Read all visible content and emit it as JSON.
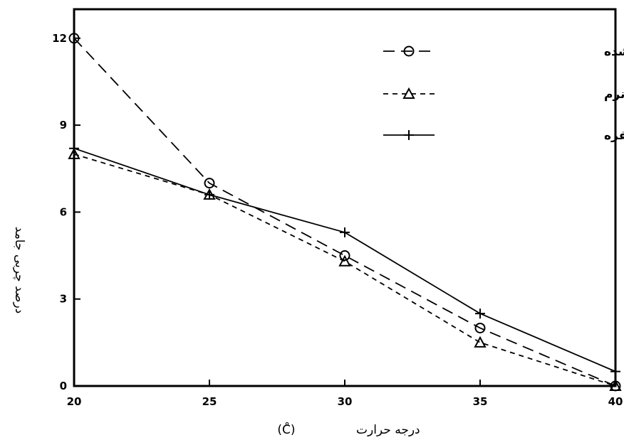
{
  "chart_data": {
    "type": "line",
    "title": "",
    "xlabel": "درجه حرارت",
    "xunit": "(C̊)",
    "ylabel": "درصد چربی جامد",
    "xlim": [
      20,
      40
    ],
    "ylim": [
      0,
      13
    ],
    "x_ticks": [
      "20",
      "25",
      "30",
      "35",
      "40"
    ],
    "y_ticks": [
      "0",
      "3",
      "6",
      "9",
      "12"
    ],
    "grid": false,
    "legend_position": "top-right",
    "series": [
      {
        "name": "نمونه تغییراستری شده",
        "marker": "circle",
        "line_style": "long-dash",
        "x": [
          20,
          25,
          30,
          35,
          40
        ],
        "y": [
          12.0,
          7.0,
          4.5,
          2.0,
          0.0
        ]
      },
      {
        "name": "مارگارین نرم",
        "marker": "triangle",
        "line_style": "short-dash",
        "x": [
          20,
          25,
          30,
          35,
          40
        ],
        "y": [
          8.0,
          6.6,
          4.3,
          1.5,
          0.0
        ]
      },
      {
        "name": "مارگارین سفره",
        "marker": "plus",
        "line_style": "solid",
        "x": [
          20,
          25,
          30,
          35,
          40
        ],
        "y": [
          8.2,
          6.6,
          5.3,
          2.5,
          0.5
        ]
      }
    ]
  }
}
